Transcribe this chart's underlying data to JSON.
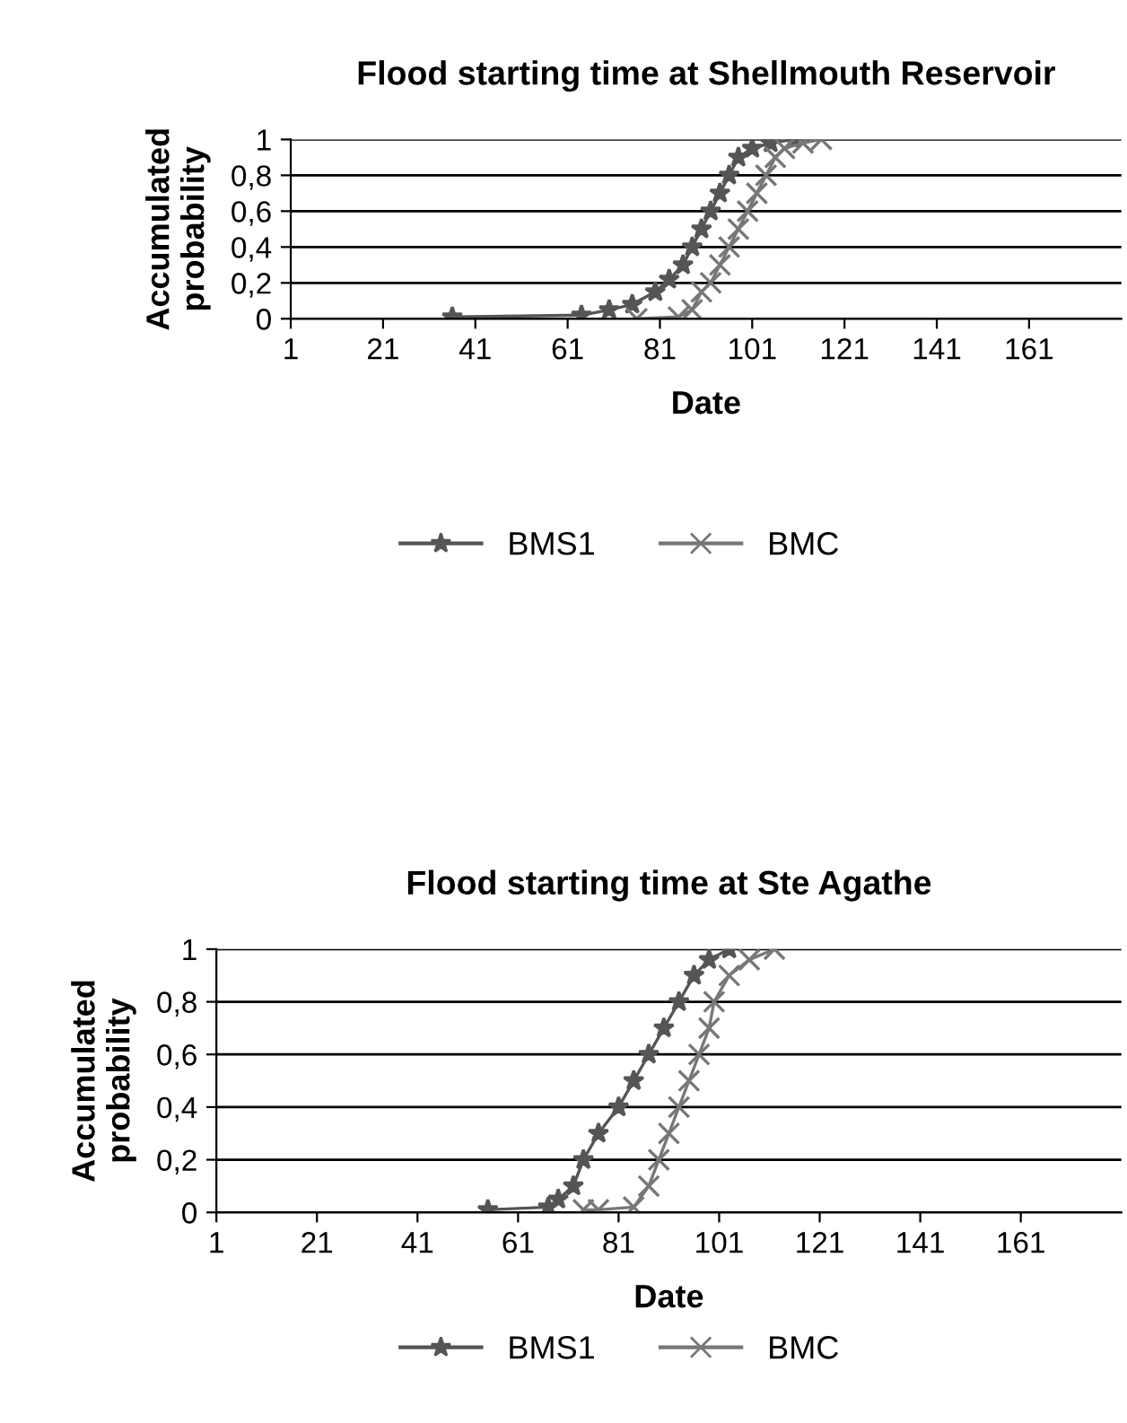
{
  "chart_data": [
    {
      "type": "line",
      "title": "Flood starting time at Shellmouth Reservoir",
      "xlabel": "Date",
      "ylabel": "Accumulated\nprobability",
      "xlim": [
        1,
        181
      ],
      "xticks": [
        1,
        21,
        41,
        61,
        81,
        101,
        121,
        141,
        161
      ],
      "ylim": [
        0,
        1
      ],
      "yticks": [
        0,
        {
          "value": 0.2,
          "label": "0,2"
        },
        {
          "value": 0.4,
          "label": "0,4"
        },
        {
          "value": 0.6,
          "label": "0,6"
        },
        {
          "value": 0.8,
          "label": "0,8"
        },
        1
      ],
      "grid": "y",
      "legend": "bottom",
      "series": [
        {
          "name": "BMS1",
          "color": "#555555",
          "marker": "star",
          "x": [
            36,
            64,
            70,
            75,
            80,
            83,
            86,
            88,
            90,
            92,
            94,
            96,
            98,
            101,
            105,
            110
          ],
          "values": [
            0.01,
            0.02,
            0.05,
            0.08,
            0.15,
            0.22,
            0.3,
            0.4,
            0.5,
            0.6,
            0.7,
            0.8,
            0.9,
            0.95,
            0.98,
            1
          ]
        },
        {
          "name": "BMC",
          "color": "#777777",
          "marker": "cross",
          "x": [
            76,
            85,
            88,
            90,
            92,
            94,
            96,
            98,
            100,
            102,
            104,
            106,
            108,
            112,
            116
          ],
          "values": [
            0,
            0.01,
            0.05,
            0.15,
            0.2,
            0.3,
            0.4,
            0.5,
            0.6,
            0.7,
            0.8,
            0.9,
            0.95,
            0.98,
            1
          ]
        }
      ]
    },
    {
      "type": "line",
      "title": "Flood starting time at Ste Agathe",
      "xlabel": "Date",
      "ylabel": "Accumulated\nprobability",
      "xlim": [
        1,
        181
      ],
      "xticks": [
        1,
        21,
        41,
        61,
        81,
        101,
        121,
        141,
        161
      ],
      "ylim": [
        0,
        1
      ],
      "yticks": [
        0,
        {
          "value": 0.2,
          "label": "0,2"
        },
        {
          "value": 0.4,
          "label": "0,4"
        },
        {
          "value": 0.6,
          "label": "0,6"
        },
        {
          "value": 0.8,
          "label": "0,8"
        },
        1
      ],
      "grid": "y",
      "legend": "bottom",
      "series": [
        {
          "name": "BMS1",
          "color": "#555555",
          "marker": "star",
          "x": [
            55,
            67,
            69,
            72,
            74,
            77,
            81,
            84,
            87,
            90,
            93,
            96,
            99,
            103
          ],
          "values": [
            0.01,
            0.02,
            0.05,
            0.1,
            0.2,
            0.3,
            0.4,
            0.5,
            0.6,
            0.7,
            0.8,
            0.9,
            0.96,
            1
          ]
        },
        {
          "name": "BMC",
          "color": "#777777",
          "marker": "cross",
          "x": [
            74,
            77,
            84,
            87,
            89,
            91,
            93,
            95,
            97,
            99,
            100,
            103,
            107,
            112
          ],
          "values": [
            0.01,
            0.01,
            0.02,
            0.1,
            0.2,
            0.3,
            0.4,
            0.5,
            0.6,
            0.7,
            0.8,
            0.9,
            0.96,
            1
          ]
        }
      ]
    }
  ]
}
